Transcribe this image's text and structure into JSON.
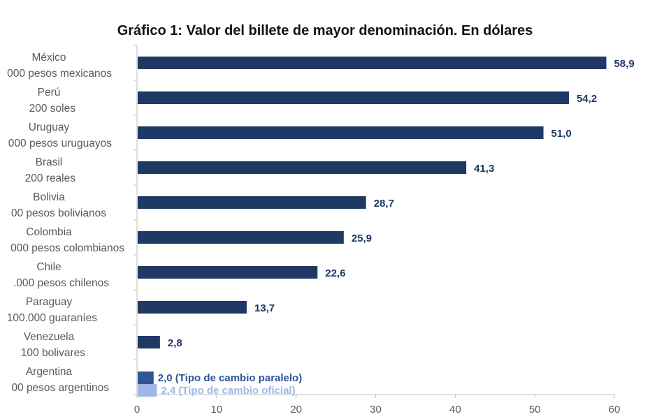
{
  "chart_data": {
    "type": "bar",
    "orientation": "horizontal",
    "title": "Gráfico 1: Valor del billete de mayor denominación. En dólares",
    "xlabel": "",
    "ylabel": "",
    "xlim": [
      0,
      60
    ],
    "x_ticks": [
      "0",
      "10",
      "20",
      "30",
      "40",
      "50",
      "60"
    ],
    "grid": false,
    "categories": [
      {
        "name": "México",
        "note": "000 pesos mexicanos",
        "value": 58.9,
        "label": "58,9"
      },
      {
        "name": "Perú",
        "note": "200 soles",
        "value": 54.2,
        "label": "54,2"
      },
      {
        "name": "Uruguay",
        "note": "000 pesos uruguayos",
        "value": 51.0,
        "label": "51,0"
      },
      {
        "name": "Brasil",
        "note": "200 reales",
        "value": 41.3,
        "label": "41,3"
      },
      {
        "name": "Bolivia",
        "note": "00 pesos bolivianos",
        "value": 28.7,
        "label": "28,7"
      },
      {
        "name": "Colombia",
        "note": "000 pesos colombianos",
        "value": 25.9,
        "label": "25,9"
      },
      {
        "name": "Chile",
        "note": ".000 pesos chilenos",
        "value": 22.6,
        "label": "22,6"
      },
      {
        "name": "Paraguay",
        "note": "100.000 guaraníes",
        "value": 13.7,
        "label": "13,7"
      },
      {
        "name": "Venezuela",
        "note": "100 bolivares",
        "value": 2.8,
        "label": "2,8"
      },
      {
        "name": "Argentina",
        "note": "00 pesos argentinos",
        "bars": [
          {
            "value": 2.0,
            "label": "2,0 (Tipo de cambio paralelo)",
            "color": "#2f5597"
          },
          {
            "value": 2.4,
            "label": "2,4 (Tipo de cambio oficial)",
            "color": "#9fb7e6"
          }
        ]
      }
    ],
    "colors": {
      "bar": "#1f3864",
      "axis": "#bfbfbf",
      "text": "#595959"
    }
  }
}
